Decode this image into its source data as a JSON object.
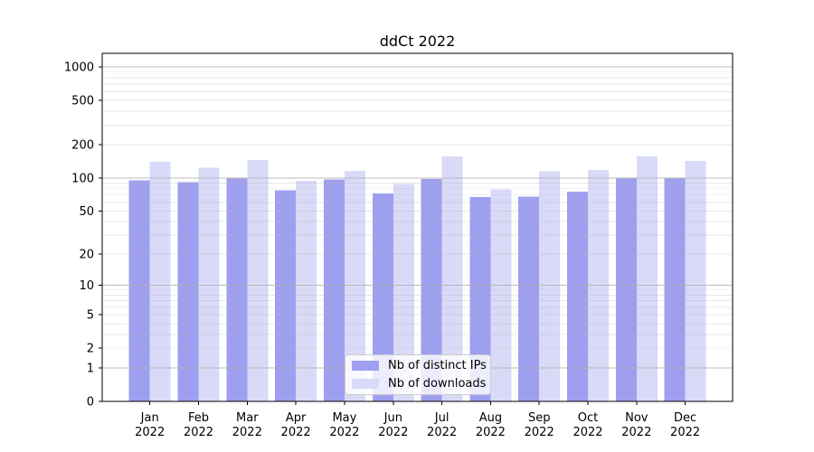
{
  "chart_data": {
    "type": "bar",
    "title": "ddCt 2022",
    "year_label": "2022",
    "categories": [
      "Jan",
      "Feb",
      "Mar",
      "Apr",
      "May",
      "Jun",
      "Jul",
      "Aug",
      "Sep",
      "Oct",
      "Nov",
      "Dec"
    ],
    "series": [
      {
        "name": "Nb of distinct IPs",
        "color": "#9f9ff0",
        "values": [
          95,
          92,
          100,
          77,
          97,
          72,
          98,
          67,
          68,
          75,
          100,
          100
        ]
      },
      {
        "name": "Nb of downloads",
        "color": "#d9d9f8",
        "values": [
          140,
          124,
          145,
          94,
          116,
          88,
          157,
          79,
          115,
          118,
          156,
          143
        ]
      }
    ],
    "yticks": [
      0,
      1,
      2,
      5,
      10,
      20,
      50,
      100,
      200,
      500,
      1000
    ],
    "scale": "log1p",
    "ylim": [
      0,
      1300
    ],
    "xlabel": "",
    "ylabel": "",
    "grid": {
      "on": true,
      "major_color": "#b0b0b0",
      "minor_color": "#e6e6e6"
    },
    "legend_position": "lower center"
  }
}
